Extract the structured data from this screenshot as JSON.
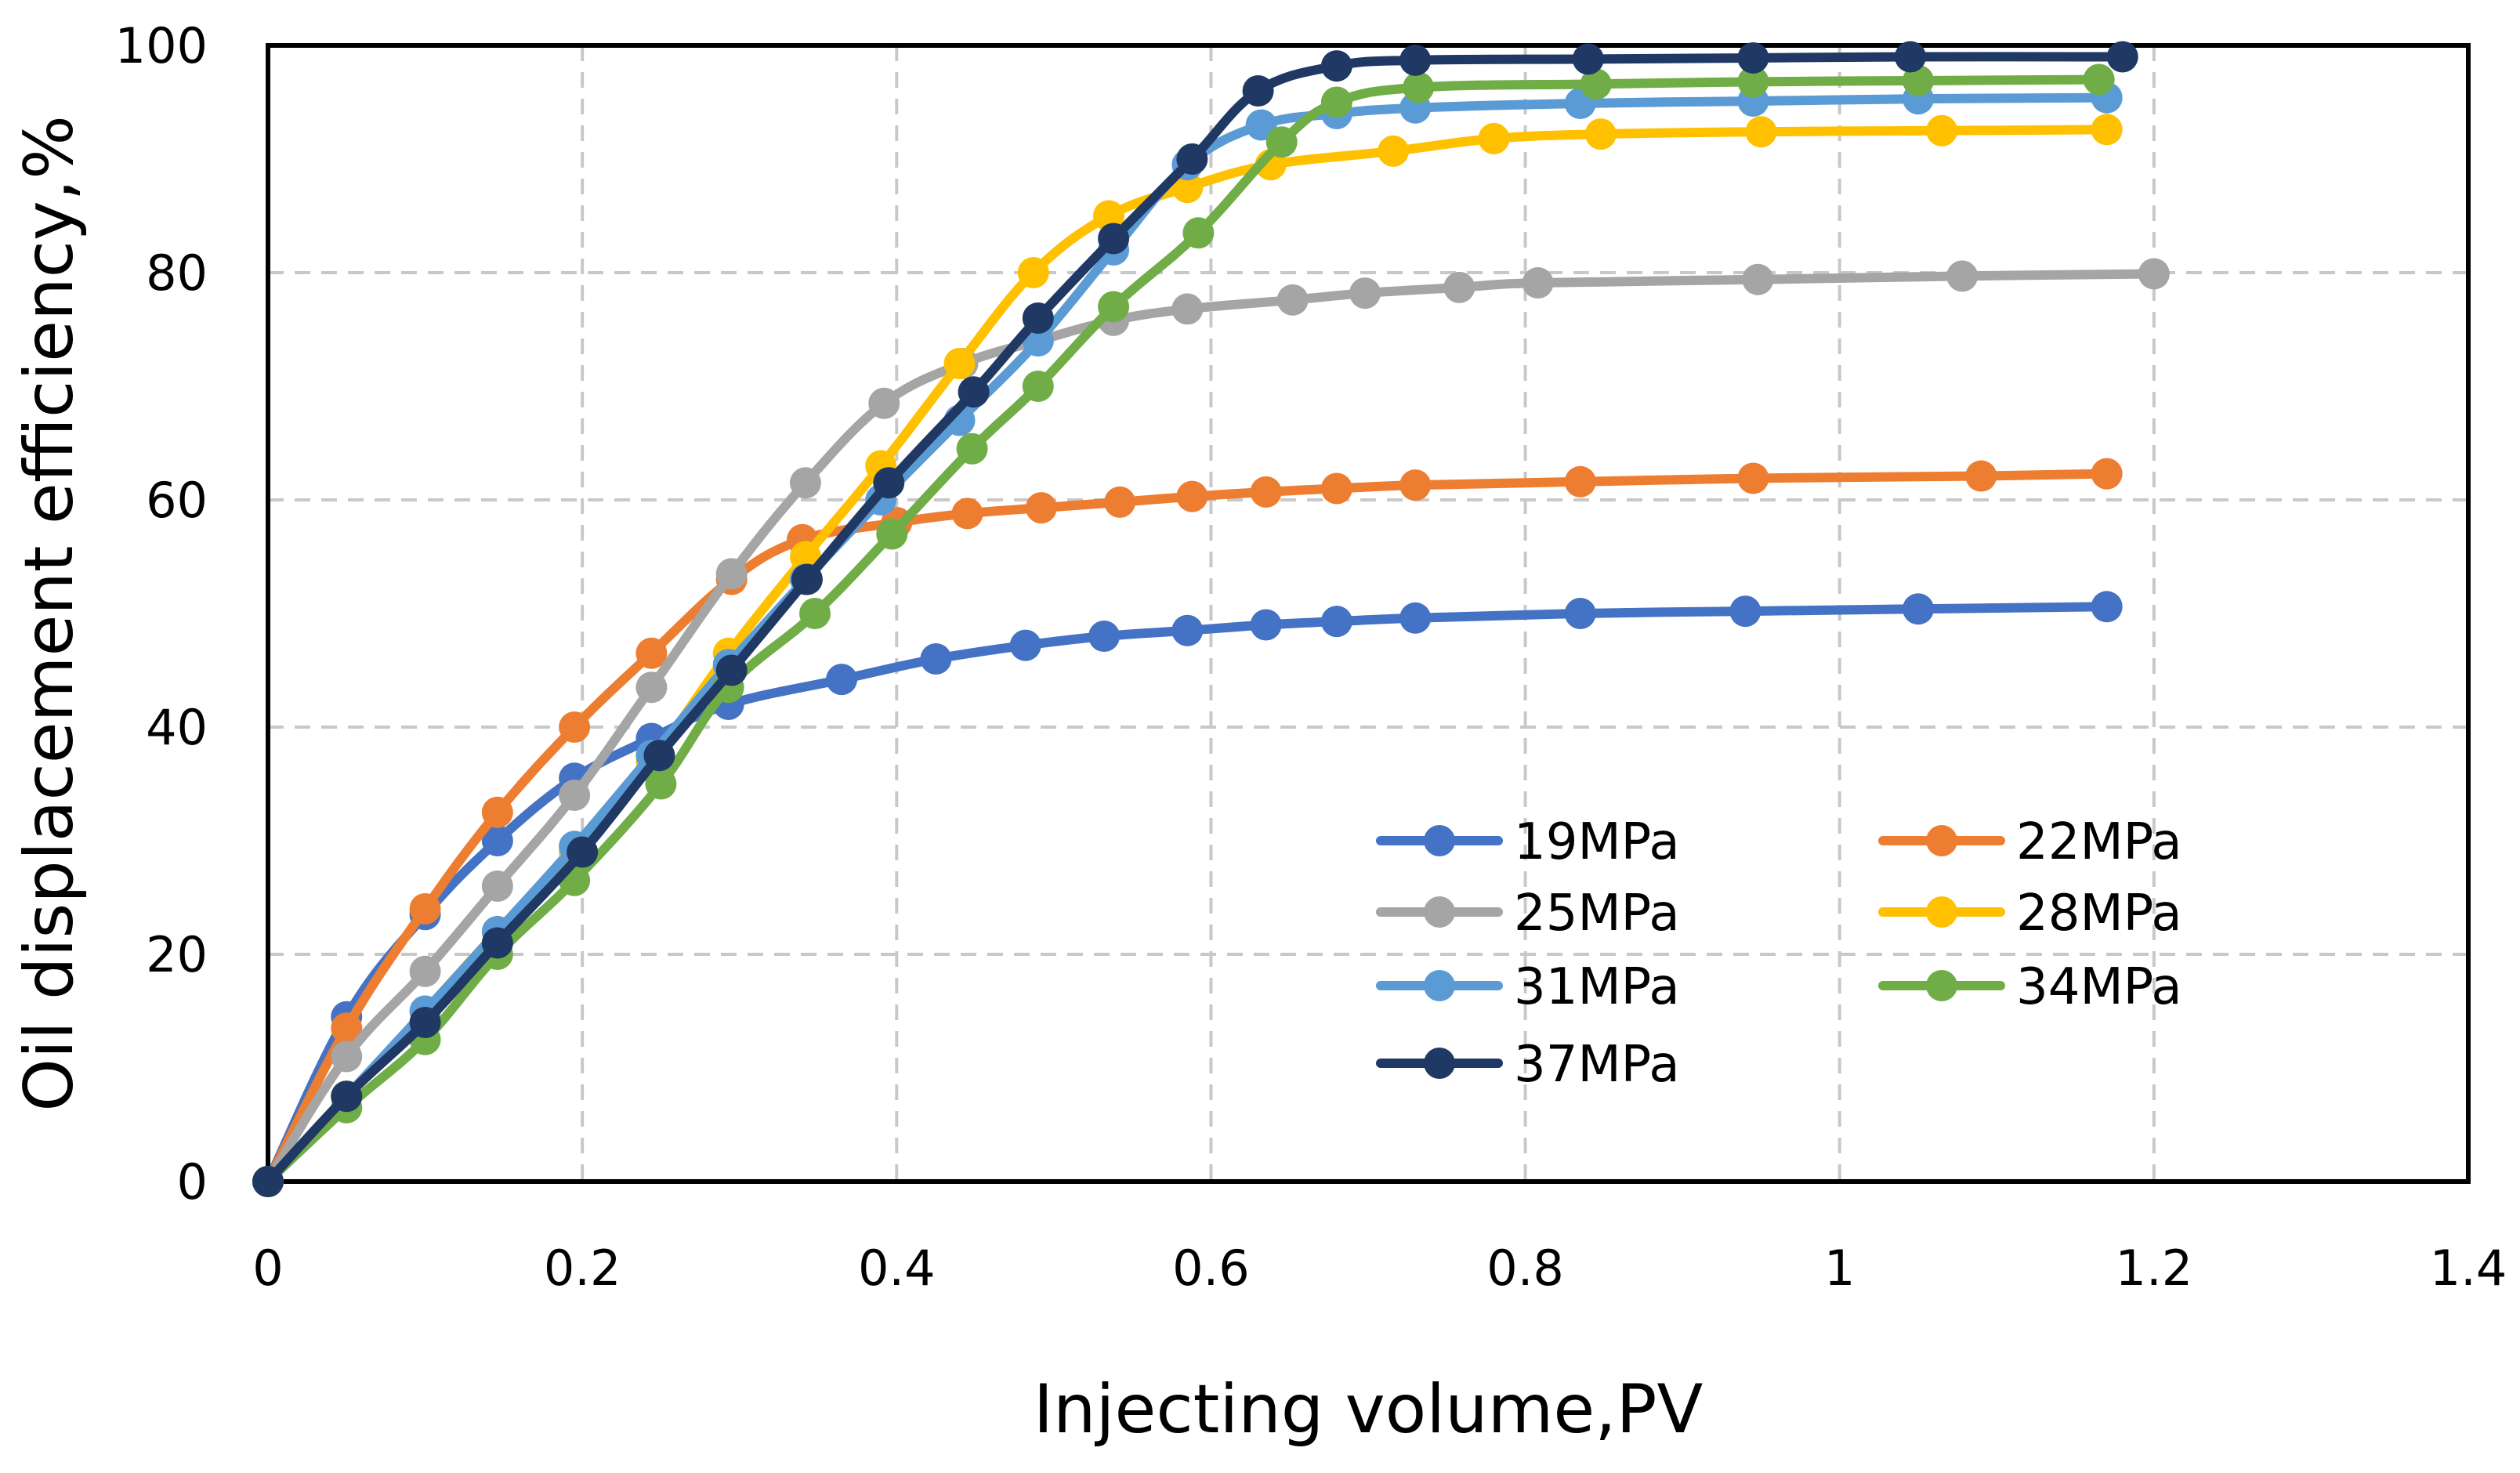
{
  "chart_data": {
    "type": "line",
    "title": "",
    "xlabel": "Injecting volume,PV",
    "ylabel": "Oil displacement efficiency,%",
    "xlim": [
      0,
      1.4
    ],
    "ylim": [
      0,
      100
    ],
    "x_ticks": [
      0,
      0.2,
      0.4,
      0.6,
      0.8,
      1,
      1.2,
      1.4
    ],
    "x_tick_labels": [
      "0",
      "0.2",
      "0.4",
      "0.6",
      "0.8",
      "1",
      "1.2",
      "1.4"
    ],
    "y_ticks": [
      0,
      20,
      40,
      60,
      80,
      100
    ],
    "y_tick_labels": [
      "0",
      "20",
      "40",
      "60",
      "80",
      "100"
    ],
    "grid": true,
    "legend_position": "lower-right",
    "series": [
      {
        "name": "19MPa",
        "color": "#4472C4",
        "x": [
          0,
          0.05,
          0.1,
          0.146,
          0.195,
          0.244,
          0.293,
          0.365,
          0.425,
          0.482,
          0.532,
          0.585,
          0.635,
          0.68,
          0.73,
          0.835,
          0.94,
          1.05,
          1.17
        ],
        "y": [
          0,
          14.5,
          23.5,
          30,
          35.5,
          39,
          42,
          44.2,
          46,
          47.2,
          48,
          48.5,
          49,
          49.3,
          49.6,
          50,
          50.2,
          50.4,
          50.6
        ]
      },
      {
        "name": "22MPa",
        "color": "#ED7D31",
        "x": [
          0,
          0.05,
          0.1,
          0.146,
          0.195,
          0.244,
          0.295,
          0.34,
          0.4,
          0.445,
          0.492,
          0.542,
          0.588,
          0.635,
          0.68,
          0.73,
          0.835,
          0.945,
          1.09,
          1.17
        ],
        "y": [
          0,
          13.5,
          24,
          32.5,
          40,
          46.5,
          53,
          56.5,
          58,
          58.8,
          59.3,
          59.8,
          60.3,
          60.7,
          61,
          61.3,
          61.6,
          61.9,
          62.1,
          62.3
        ]
      },
      {
        "name": "25MPa",
        "color": "#A5A5A5",
        "x": [
          0,
          0.05,
          0.1,
          0.146,
          0.195,
          0.244,
          0.295,
          0.342,
          0.392,
          0.442,
          0.49,
          0.538,
          0.585,
          0.652,
          0.698,
          0.758,
          0.808,
          0.948,
          1.078,
          1.2
        ],
        "y": [
          0,
          11,
          18.5,
          26,
          34,
          43.5,
          53.5,
          61.5,
          68.5,
          72,
          74,
          75.8,
          76.8,
          77.6,
          78.2,
          78.7,
          79.1,
          79.4,
          79.7,
          79.9
        ]
      },
      {
        "name": "28MPa",
        "color": "#FFC000",
        "x": [
          0,
          0.05,
          0.1,
          0.146,
          0.195,
          0.244,
          0.293,
          0.342,
          0.39,
          0.44,
          0.487,
          0.535,
          0.585,
          0.638,
          0.716,
          0.78,
          0.848,
          0.95,
          1.065,
          1.17
        ],
        "y": [
          0,
          7.5,
          15,
          22,
          29,
          37,
          46.5,
          55,
          63,
          72,
          80,
          85,
          87.5,
          89.5,
          90.7,
          91.8,
          92.2,
          92.4,
          92.5,
          92.6
        ]
      },
      {
        "name": "31MPa",
        "color": "#5B9BD5",
        "x": [
          0,
          0.05,
          0.1,
          0.146,
          0.195,
          0.244,
          0.293,
          0.342,
          0.39,
          0.44,
          0.49,
          0.538,
          0.585,
          0.632,
          0.68,
          0.73,
          0.835,
          0.945,
          1.05,
          1.17
        ],
        "y": [
          0,
          7.5,
          15,
          22,
          29.5,
          37.5,
          45.5,
          53,
          60,
          67,
          74,
          82,
          89.5,
          93,
          94,
          94.5,
          94.9,
          95.1,
          95.3,
          95.4
        ]
      },
      {
        "name": "34MPa",
        "color": "#70AD47",
        "x": [
          0,
          0.05,
          0.1,
          0.146,
          0.195,
          0.25,
          0.293,
          0.348,
          0.397,
          0.448,
          0.49,
          0.538,
          0.592,
          0.645,
          0.68,
          0.732,
          0.845,
          0.945,
          1.05,
          1.165
        ],
        "y": [
          0,
          6.5,
          12.5,
          20,
          26.5,
          35,
          43.5,
          50,
          57,
          64.5,
          70,
          77,
          83.5,
          91.5,
          95,
          96.3,
          96.6,
          96.8,
          96.9,
          97
        ]
      },
      {
        "name": "37MPa",
        "color": "#203864",
        "x": [
          0,
          0.05,
          0.1,
          0.146,
          0.2,
          0.249,
          0.295,
          0.343,
          0.395,
          0.449,
          0.49,
          0.538,
          0.588,
          0.63,
          0.68,
          0.73,
          0.84,
          0.945,
          1.045,
          1.18
        ],
        "y": [
          0,
          7.5,
          14,
          21,
          29,
          37.5,
          45,
          53,
          61.5,
          69.5,
          76,
          83,
          90,
          96,
          98.2,
          98.7,
          98.8,
          98.9,
          99,
          99
        ]
      }
    ]
  }
}
